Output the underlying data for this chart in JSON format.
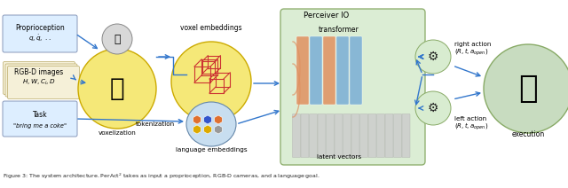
{
  "bg_color": "#ffffff",
  "arrow_color": "#3377cc",
  "labels": {
    "proprioception": "Proprioception",
    "q_dot": "$q, \\dot{q},\\ ..$",
    "rgb_d": "RGB-D images",
    "hwcd": "$H, W, C_i, D$",
    "task": "Task",
    "task_quote": "\\textit{\"bring me a coke\"}",
    "voxel_embed": "voxel embeddings",
    "voxelization": "voxelization",
    "tokenization": "tokenization",
    "lang_embed": "language embeddings",
    "perceiver_io": "Perceiver IO",
    "transformer": "transformer",
    "latent_vectors": "latent vectors",
    "right_action": "right action",
    "right_params": "$(R, t, a_{open})$",
    "left_action": "left action",
    "left_params": "$(R, t, a_{open})$",
    "execution": "execution"
  },
  "box_proprioception_fc": "#ddeeff",
  "box_proprioception_ec": "#8899bb",
  "box_rgbd_fc": "#f5f0d8",
  "box_rgbd_ec": "#bbaa66",
  "box_task_fc": "#ddeeff",
  "box_task_ec": "#8899bb",
  "circle_robot_fc": "#f5e878",
  "circle_robot_ec": "#ccaa00",
  "circle_voxel_fc": "#f5e878",
  "circle_voxel_ec": "#ccaa00",
  "circle_lang_fc": "#c8def0",
  "circle_lang_ec": "#6688aa",
  "perceiver_fc": "#d8ecd0",
  "perceiver_ec": "#88aa66",
  "transformer_orange": "#e09060",
  "transformer_blue": "#7aaed6",
  "latent_fc": "#cccccc",
  "latent_ec": "#aaaaaa",
  "action_circle_fc": "#d8ecd0",
  "action_circle_ec": "#88aa66",
  "execution_fc": "#c8dcc0",
  "execution_ec": "#88aa66",
  "hex_colors": [
    "#e07030",
    "#3355cc",
    "#e07030",
    "#ddaa00",
    "#ddaa00",
    "#999999"
  ],
  "caption": "Figure 3: The system architecture. PerAct$^2$ takes as input a proprioception, RGB-D cameras, and a language goal."
}
